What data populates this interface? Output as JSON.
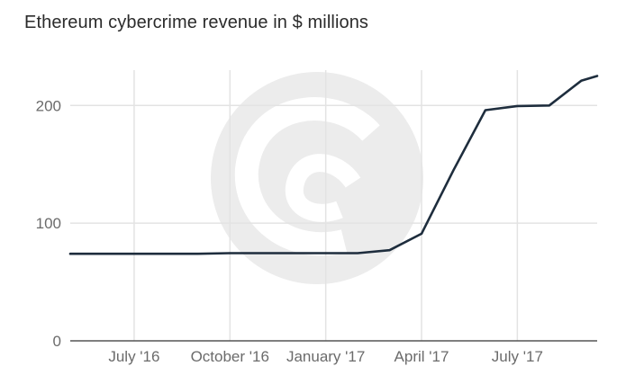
{
  "colors": {
    "line": "#1e2d3d",
    "watermark": "#ececec",
    "grid": "#e3e3e3",
    "text": "#6b6b6b"
  },
  "chart_data": {
    "type": "line",
    "title": "Ethereum cybercrime revenue in $ millions",
    "xlabel": "",
    "ylabel": "",
    "ylim": [
      0,
      230
    ],
    "xlim": [
      0,
      16.5
    ],
    "grid": true,
    "x_ticks": [
      {
        "x": 2,
        "label": "July '16"
      },
      {
        "x": 5,
        "label": "October '16"
      },
      {
        "x": 8,
        "label": "January '17"
      },
      {
        "x": 11,
        "label": "April '17"
      },
      {
        "x": 14,
        "label": "July '17"
      }
    ],
    "y_ticks": [
      {
        "y": 0,
        "label": "0"
      },
      {
        "y": 100,
        "label": "100"
      },
      {
        "y": 200,
        "label": "200"
      }
    ],
    "series": [
      {
        "name": "Ethereum cybercrime revenue",
        "x": [
          0,
          1,
          2,
          3,
          4,
          5,
          6,
          7,
          8,
          9,
          10,
          11,
          12,
          13,
          14,
          15,
          16,
          16.5
        ],
        "values": [
          74,
          74,
          74,
          74,
          74,
          74.5,
          74.5,
          74.5,
          74.5,
          74.5,
          77,
          91,
          145,
          196,
          199.5,
          200,
          221,
          225
        ]
      }
    ]
  }
}
